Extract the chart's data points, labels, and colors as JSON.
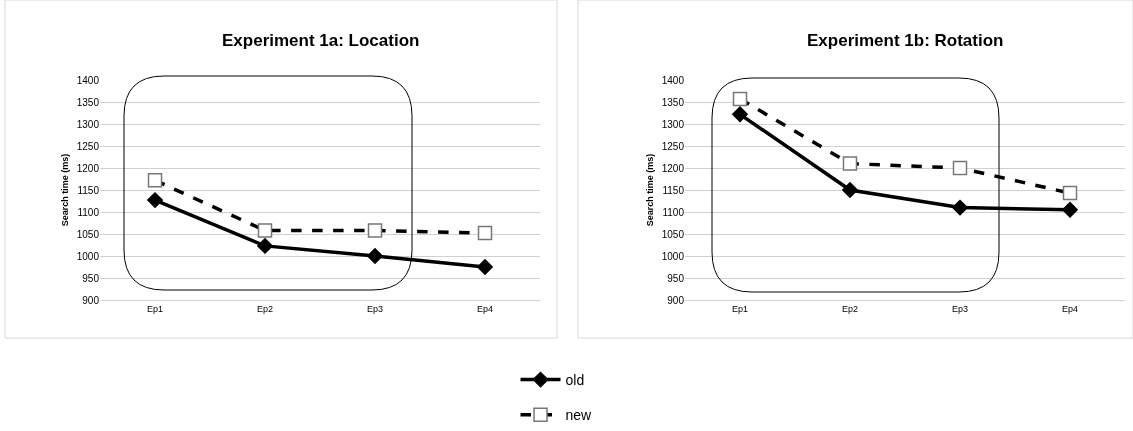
{
  "chart_data": [
    {
      "type": "line",
      "title": "Experiment 1a: Location",
      "ylabel": "Search time (ms)",
      "categories": [
        "Ep1",
        "Ep2",
        "Ep3",
        "Ep4"
      ],
      "ylim": [
        900,
        1400
      ],
      "yticks": [
        900,
        950,
        1000,
        1050,
        1100,
        1150,
        1200,
        1250,
        1300,
        1350,
        1400
      ],
      "grid": "y",
      "legend": "bottom",
      "series": [
        {
          "name": "old",
          "color": "#000000",
          "marker": "diamond",
          "line_style": "solid",
          "values": [
            1127,
            1023,
            1000,
            975
          ]
        },
        {
          "name": "new",
          "color": "#000000",
          "marker": "square",
          "line_style": "dashed",
          "values": [
            1172,
            1058,
            1058,
            1052
          ]
        }
      ]
    },
    {
      "type": "line",
      "title": "Experiment 1b: Rotation",
      "ylabel": "Search time (ms)",
      "categories": [
        "Ep1",
        "Ep2",
        "Ep3",
        "Ep4"
      ],
      "ylim": [
        900,
        1400
      ],
      "yticks": [
        900,
        950,
        1000,
        1050,
        1100,
        1150,
        1200,
        1250,
        1300,
        1350,
        1400
      ],
      "grid": "y",
      "series": [
        {
          "color": "#000000",
          "marker": "diamond",
          "line_style": "solid",
          "values": [
            1322,
            1150,
            1110,
            1105
          ]
        },
        {
          "color": "#000000",
          "marker": "square",
          "line_style": "dashed",
          "values": [
            1357,
            1210,
            1200,
            1143
          ]
        }
      ]
    }
  ]
}
